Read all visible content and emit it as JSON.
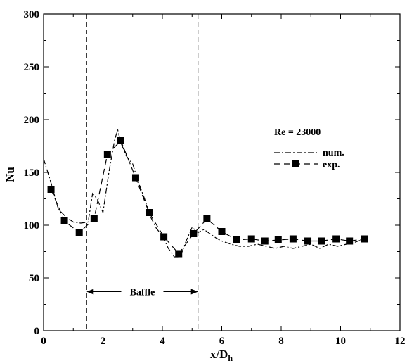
{
  "chart_data": {
    "type": "line",
    "title": "",
    "xlabel": "x/D",
    "xlabel_sub": "h",
    "ylabel": "Nu",
    "xlim": [
      0,
      12
    ],
    "ylim": [
      0,
      300
    ],
    "xticks": [
      0,
      2,
      4,
      6,
      8,
      10,
      12
    ],
    "yticks": [
      0,
      50,
      100,
      150,
      200,
      250,
      300
    ],
    "grid": false,
    "legend_position": "right",
    "legend_title": "Re = 23000",
    "series": [
      {
        "name": "num.",
        "style": "dash-dot",
        "x": [
          0,
          0.25,
          0.5,
          0.75,
          1.0,
          1.25,
          1.5,
          1.65,
          1.8,
          2.0,
          2.2,
          2.4,
          2.5,
          2.6,
          2.8,
          3.0,
          3.2,
          3.4,
          3.6,
          3.8,
          4.0,
          4.2,
          4.4,
          4.6,
          4.8,
          5.0,
          5.2,
          5.4,
          5.6,
          5.8,
          6.0,
          6.3,
          6.6,
          6.9,
          7.2,
          7.5,
          7.8,
          8.1,
          8.4,
          8.7,
          9.0,
          9.3,
          9.6,
          9.9,
          10.2,
          10.5,
          10.8
        ],
        "y": [
          163,
          140,
          115,
          108,
          103,
          102,
          103,
          130,
          125,
          112,
          150,
          182,
          190,
          178,
          165,
          158,
          140,
          125,
          108,
          97,
          90,
          78,
          70,
          70,
          85,
          98,
          93,
          96,
          92,
          88,
          85,
          82,
          80,
          80,
          82,
          80,
          78,
          80,
          78,
          80,
          82,
          78,
          82,
          80,
          82,
          84,
          87
        ]
      },
      {
        "name": "exp.",
        "style": "dashed-square",
        "x": [
          0,
          0.25,
          0.7,
          1.2,
          1.7,
          2.15,
          2.6,
          3.1,
          3.55,
          4.05,
          4.55,
          5.05,
          5.5,
          6.0,
          6.5,
          7.0,
          7.45,
          7.9,
          8.4,
          8.9,
          9.35,
          9.85,
          10.3,
          10.8
        ],
        "y": [
          null,
          134,
          104,
          93,
          106,
          167,
          180,
          145,
          112,
          89,
          73,
          92,
          106,
          94,
          86,
          87,
          85,
          86,
          87,
          85,
          85,
          87,
          85,
          87
        ]
      }
    ],
    "annotations": [
      {
        "type": "vline",
        "x": 1.45,
        "style": "dashed"
      },
      {
        "type": "vline",
        "x": 5.2,
        "style": "dashed"
      },
      {
        "type": "arrow-both",
        "x1": 1.45,
        "x2": 5.2,
        "y": 37,
        "label": "Baffle"
      }
    ]
  }
}
